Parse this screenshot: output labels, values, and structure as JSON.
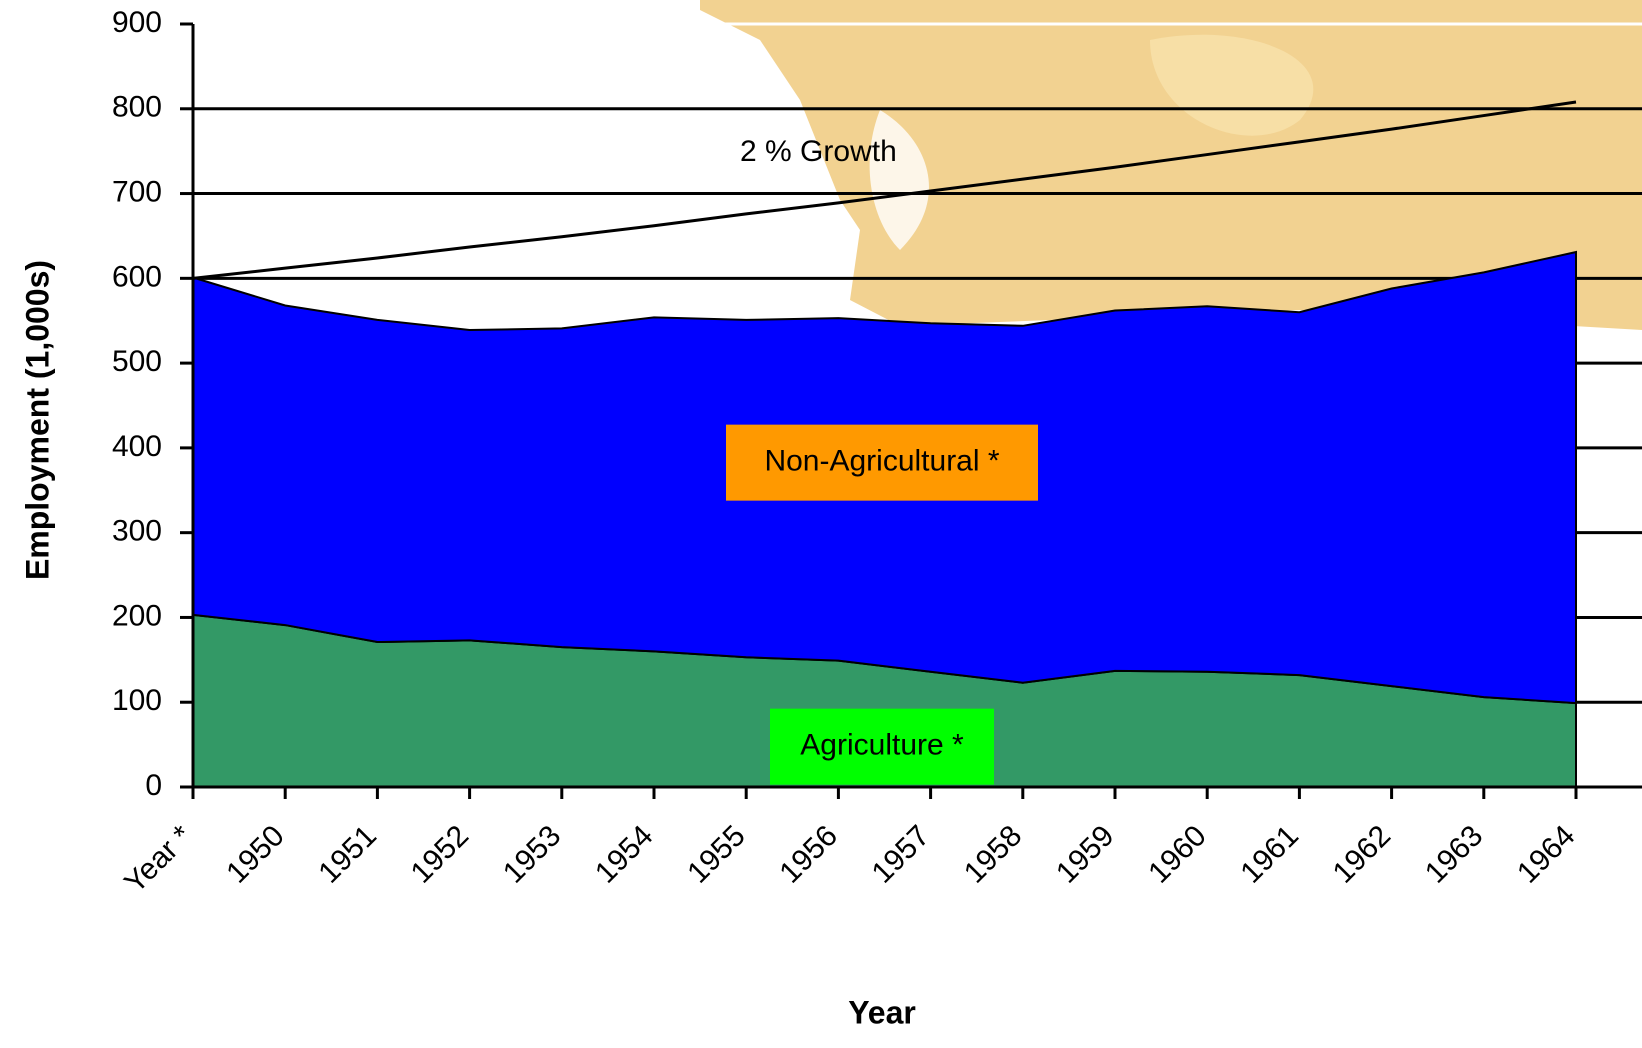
{
  "chart_data": {
    "type": "stacked-area",
    "x_label": "Year",
    "y_label": "Employment  (1,000s)",
    "categories": [
      "Year *",
      "1950",
      "1951",
      "1952",
      "1953",
      "1954",
      "1955",
      "1956",
      "1957",
      "1958",
      "1959",
      "1960",
      "1961",
      "1962",
      "1963",
      "1964"
    ],
    "series": [
      {
        "name": "Agriculture *",
        "color": "#339966",
        "label_color": "#00ff00",
        "values": [
          203,
          191,
          171,
          173,
          165,
          160,
          153,
          149,
          136,
          123,
          137,
          136,
          132,
          119,
          106,
          99
        ]
      },
      {
        "name": "Non-Agricultural *",
        "color": "#0000ff",
        "label_color": "#ff9900",
        "values": [
          398,
          377,
          380,
          366,
          376,
          394,
          398,
          404,
          411,
          421,
          425,
          431,
          428,
          469,
          501,
          532
        ]
      },
      {
        "name": "2 % Growth",
        "type": "line",
        "color": "#000000",
        "values": [
          600,
          612,
          624,
          637,
          649,
          662,
          676,
          689,
          703,
          717,
          731,
          746,
          761,
          776,
          792,
          808
        ]
      }
    ],
    "ylim": [
      0,
      900
    ],
    "yticks": [
      0,
      100,
      200,
      300,
      400,
      500,
      600,
      700,
      800,
      900
    ],
    "grid": true
  }
}
